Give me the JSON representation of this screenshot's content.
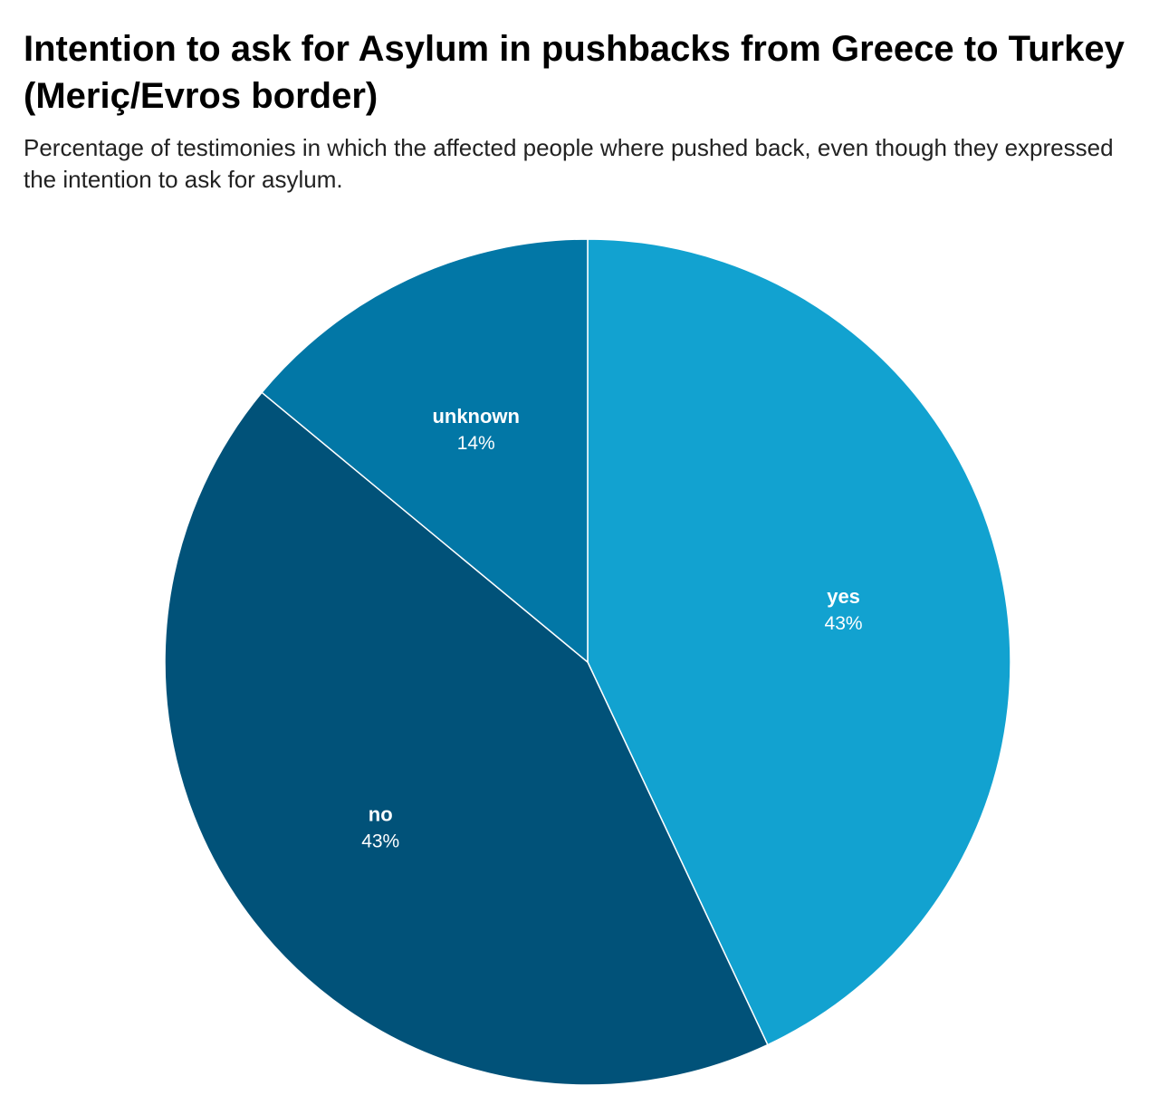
{
  "header": {
    "title": "Intention to ask for Asylum in pushbacks from Greece to Turkey (Meriç/Evros border)",
    "subtitle": "Percentage of testimonies in which the affected people where pushed back, even though they expressed the intention to ask for asylum."
  },
  "chart_data": {
    "type": "pie",
    "title": "Intention to ask for Asylum in pushbacks from Greece to Turkey (Meriç/Evros border)",
    "subtitle": "Percentage of testimonies in which the affected people where pushed back, even though they expressed the intention to ask for asylum.",
    "start": "12 o'clock",
    "direction": "clockwise",
    "slices": [
      {
        "label": "yes",
        "value": 43,
        "value_label": "43%",
        "color": "#12A2D0"
      },
      {
        "label": "no",
        "value": 43,
        "value_label": "43%",
        "color": "#015279"
      },
      {
        "label": "unknown",
        "value": 14,
        "value_label": "14%",
        "color": "#0277A6"
      }
    ]
  }
}
